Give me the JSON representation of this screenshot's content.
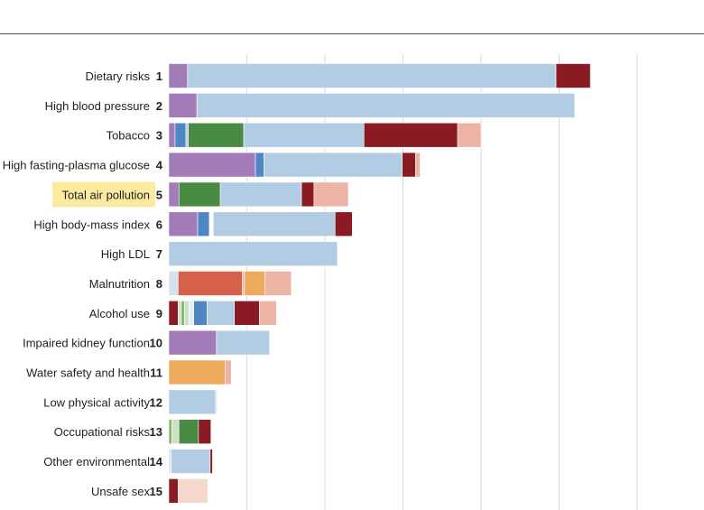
{
  "chart_data": {
    "type": "bar",
    "stacked": true,
    "orientation": "horizontal",
    "highlight_category": "Total air pollution",
    "highlight_color": "#faeba0",
    "grid": true,
    "xlim": [
      0,
      600
    ],
    "gridlines": [
      100,
      200,
      300,
      400,
      500,
      600
    ],
    "categories": [
      {
        "label": "Dietary risks",
        "rank": "1",
        "segments": [
          {
            "v": 24,
            "c": "#a27cb8"
          },
          {
            "v": 472,
            "c": "#b2cde3"
          },
          {
            "v": 44,
            "c": "#8a1b24"
          }
        ]
      },
      {
        "label": "High blood pressure",
        "rank": "2",
        "segments": [
          {
            "v": 36,
            "c": "#a27cb8"
          },
          {
            "v": 484,
            "c": "#b2cde3"
          }
        ]
      },
      {
        "label": "Tobacco",
        "rank": "3",
        "segments": [
          {
            "v": 8,
            "c": "#a27cb8"
          },
          {
            "v": 14,
            "c": "#4f86c4"
          },
          {
            "v": 3,
            "c": "#b2cde3"
          },
          {
            "v": 71,
            "c": "#4a8b44"
          },
          {
            "v": 154,
            "c": "#b2cde3"
          },
          {
            "v": 120,
            "c": "#8a1b24"
          },
          {
            "v": 30,
            "c": "#ecb4a4"
          }
        ]
      },
      {
        "label": "High fasting-plasma glucose",
        "rank": "4",
        "segments": [
          {
            "v": 111,
            "c": "#a27cb8"
          },
          {
            "v": 11,
            "c": "#4f86c4"
          },
          {
            "v": 177,
            "c": "#b2cde3"
          },
          {
            "v": 17,
            "c": "#8a1b24"
          },
          {
            "v": 6,
            "c": "#ecb4a4"
          }
        ]
      },
      {
        "label": "Total air pollution",
        "rank": "5",
        "segments": [
          {
            "v": 13,
            "c": "#a27cb8"
          },
          {
            "v": 53,
            "c": "#4a8b44"
          },
          {
            "v": 104,
            "c": "#b2cde3"
          },
          {
            "v": 16,
            "c": "#8a1b24"
          },
          {
            "v": 44,
            "c": "#ecb4a4"
          }
        ]
      },
      {
        "label": "High body-mass index",
        "rank": "6",
        "segments": [
          {
            "v": 37,
            "c": "#a27cb8"
          },
          {
            "v": 15,
            "c": "#4f86c4"
          },
          {
            "v": 5,
            "c": "#ffffff"
          },
          {
            "v": 156,
            "c": "#b2cde3"
          },
          {
            "v": 22,
            "c": "#8a1b24"
          }
        ]
      },
      {
        "label": "High LDL",
        "rank": "7",
        "segments": [
          {
            "v": 216,
            "c": "#b2cde3"
          }
        ]
      },
      {
        "label": "Malnutrition",
        "rank": "8",
        "segments": [
          {
            "v": 12,
            "c": "#d5e2ef"
          },
          {
            "v": 82,
            "c": "#d7604a"
          },
          {
            "v": 3,
            "c": "#ecb4a4"
          },
          {
            "v": 26,
            "c": "#eeaa5c"
          },
          {
            "v": 34,
            "c": "#ecb4a4"
          }
        ]
      },
      {
        "label": "Alcohol use",
        "rank": "9",
        "segments": [
          {
            "v": 12,
            "c": "#8a1b24"
          },
          {
            "v": 4,
            "c": "#cfe0c8"
          },
          {
            "v": 4,
            "c": "#88b86a"
          },
          {
            "v": 6,
            "c": "#cfe0c8"
          },
          {
            "v": 6,
            "c": "#e4eef6"
          },
          {
            "v": 17,
            "c": "#4f86c4"
          },
          {
            "v": 35,
            "c": "#b2cde3"
          },
          {
            "v": 32,
            "c": "#8a1b24"
          },
          {
            "v": 22,
            "c": "#ecb4a4"
          }
        ]
      },
      {
        "label": "Impaired kidney function",
        "rank": "10",
        "segments": [
          {
            "v": 61,
            "c": "#a27cb8"
          },
          {
            "v": 68,
            "c": "#b2cde3"
          }
        ]
      },
      {
        "label": "Water safety and health",
        "rank": "11",
        "segments": [
          {
            "v": 72,
            "c": "#eeaa5c"
          },
          {
            "v": 8,
            "c": "#ecb4a4"
          }
        ]
      },
      {
        "label": "Low physical activity",
        "rank": "12",
        "segments": [
          {
            "v": 60,
            "c": "#b2cde3"
          },
          {
            "v": 2,
            "c": "#d5e2ef"
          }
        ]
      },
      {
        "label": "Occupational risks",
        "rank": "13",
        "segments": [
          {
            "v": 4,
            "c": "#88b86a"
          },
          {
            "v": 9,
            "c": "#cfe0c8"
          },
          {
            "v": 25,
            "c": "#4a8b44"
          },
          {
            "v": 16,
            "c": "#8a1b24"
          }
        ]
      },
      {
        "label": "Other environmental",
        "rank": "14",
        "segments": [
          {
            "v": 3,
            "c": "#d5e2ef"
          },
          {
            "v": 50,
            "c": "#b2cde3"
          },
          {
            "v": 3,
            "c": "#8a1b24"
          }
        ]
      },
      {
        "label": "Unsafe sex",
        "rank": "15",
        "segments": [
          {
            "v": 12,
            "c": "#8a1b24"
          },
          {
            "v": 38,
            "c": "#f5d7cc"
          }
        ]
      }
    ]
  }
}
